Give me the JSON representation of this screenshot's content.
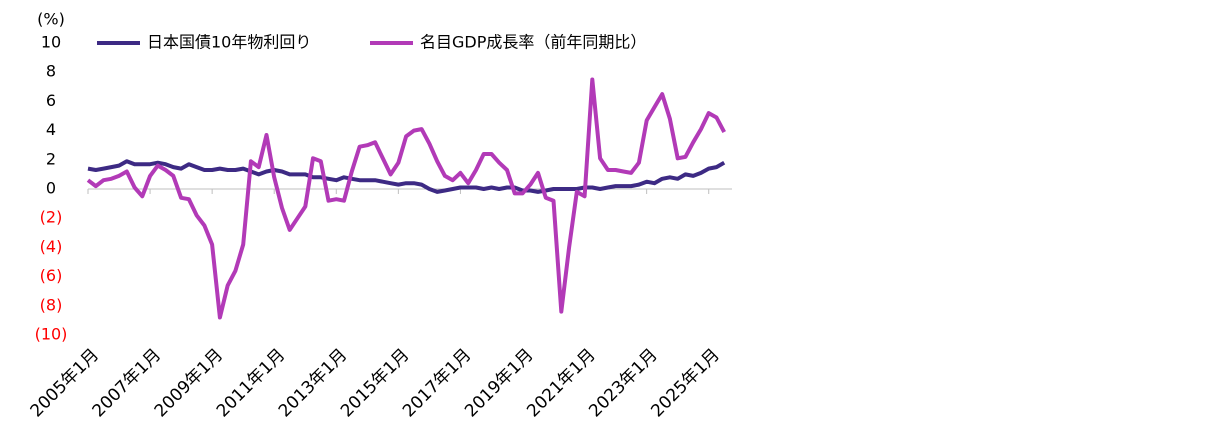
{
  "chart_data": {
    "type": "line",
    "unit_label": "(%)",
    "categories": [
      "2005年1月",
      null,
      null,
      null,
      null,
      null,
      null,
      null,
      "2007年1月",
      null,
      null,
      null,
      null,
      null,
      null,
      null,
      "2009年1月",
      null,
      null,
      null,
      null,
      null,
      null,
      null,
      "2011年1月",
      null,
      null,
      null,
      null,
      null,
      null,
      null,
      "2013年1月",
      null,
      null,
      null,
      null,
      null,
      null,
      null,
      "2015年1月",
      null,
      null,
      null,
      null,
      null,
      null,
      null,
      "2017年1月",
      null,
      null,
      null,
      null,
      null,
      null,
      null,
      "2019年1月",
      null,
      null,
      null,
      null,
      null,
      null,
      null,
      "2021年1月",
      null,
      null,
      null,
      null,
      null,
      null,
      null,
      "2023年1月",
      null,
      null,
      null,
      null,
      null,
      null,
      null,
      "2025年1月",
      null,
      null
    ],
    "series": [
      {
        "name": "日本国債10年物利回り",
        "color": "#3d2a84",
        "values": [
          1.4,
          1.3,
          1.4,
          1.5,
          1.6,
          1.9,
          1.7,
          1.7,
          1.7,
          1.8,
          1.7,
          1.5,
          1.4,
          1.7,
          1.5,
          1.3,
          1.3,
          1.4,
          1.3,
          1.3,
          1.4,
          1.2,
          1.0,
          1.2,
          1.3,
          1.2,
          1.0,
          1.0,
          1.0,
          0.8,
          0.8,
          0.7,
          0.6,
          0.8,
          0.7,
          0.6,
          0.6,
          0.6,
          0.5,
          0.4,
          0.3,
          0.4,
          0.4,
          0.3,
          0.0,
          -0.2,
          -0.1,
          0.0,
          0.1,
          0.1,
          0.1,
          0.0,
          0.1,
          0.0,
          0.1,
          0.1,
          -0.1,
          -0.1,
          -0.2,
          -0.1,
          0.0,
          0.0,
          0.0,
          0.0,
          0.1,
          0.1,
          0.0,
          0.1,
          0.2,
          0.2,
          0.2,
          0.3,
          0.5,
          0.4,
          0.7,
          0.8,
          0.7,
          1.0,
          0.9,
          1.1,
          1.4,
          1.5,
          1.8
        ]
      },
      {
        "name": "名目GDP成長率（前年同期比）",
        "color": "#b23ab7",
        "values": [
          0.6,
          0.2,
          0.6,
          0.7,
          0.9,
          1.2,
          0.1,
          -0.5,
          0.9,
          1.6,
          1.3,
          0.9,
          -0.6,
          -0.7,
          -1.8,
          -2.5,
          -3.8,
          -8.8,
          -6.6,
          -5.6,
          -3.8,
          1.9,
          1.5,
          3.7,
          0.8,
          -1.3,
          -2.8,
          -2.0,
          -1.2,
          2.1,
          1.9,
          -0.8,
          -0.7,
          -0.8,
          1.2,
          2.9,
          3.0,
          3.2,
          2.1,
          1.0,
          1.8,
          3.6,
          4.0,
          4.1,
          3.1,
          1.9,
          0.9,
          0.6,
          1.1,
          0.4,
          1.3,
          2.4,
          2.4,
          1.8,
          1.3,
          -0.3,
          -0.3,
          0.3,
          1.1,
          -0.6,
          -0.8,
          -8.4,
          -4.0,
          -0.2,
          -0.5,
          7.5,
          2.1,
          1.3,
          1.3,
          1.2,
          1.1,
          1.8,
          4.7,
          5.6,
          6.5,
          4.8,
          2.1,
          2.2,
          3.2,
          4.1,
          5.2,
          4.9,
          3.9
        ]
      }
    ],
    "ylim": [
      -10,
      10
    ],
    "yticks": [
      {
        "value": -10,
        "label": "(10)"
      },
      {
        "value": -8,
        "label": "(8)"
      },
      {
        "value": -6,
        "label": "(6)"
      },
      {
        "value": -4,
        "label": "(4)"
      },
      {
        "value": -2,
        "label": "(2)"
      },
      0,
      2,
      4,
      6,
      8,
      10
    ],
    "negative_tick_color": "#ff0000",
    "legend": "top"
  }
}
